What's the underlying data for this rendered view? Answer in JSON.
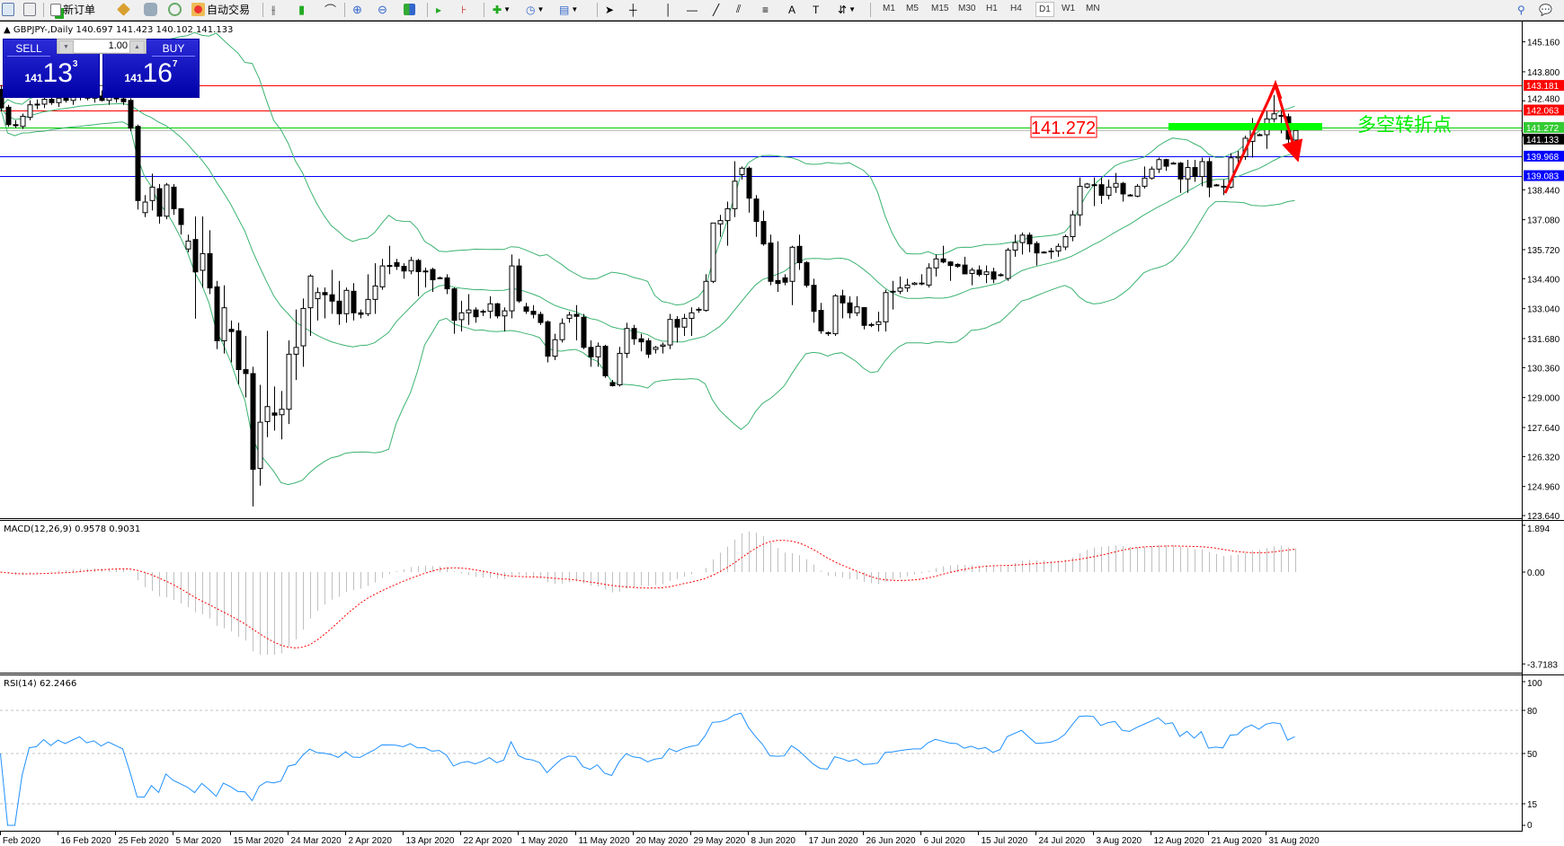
{
  "toolbar": {
    "new_order_label": "新订单",
    "auto_trading_label": "自动交易",
    "icons": [
      "market-watch-icon",
      "navigator-icon",
      "new-order-icon",
      "history-center-icon",
      "terminal-icon",
      "signals-icon",
      "auto-trading-icon",
      "bar-chart-icon",
      "candlestick-icon",
      "line-chart-icon",
      "zoom-in-icon",
      "zoom-out-icon",
      "tile-windows-icon",
      "auto-scroll-icon",
      "chart-shift-icon",
      "indicators-icon",
      "periods-icon",
      "templates-icon",
      "cursor-icon",
      "crosshair-icon",
      "vertical-line-icon",
      "horizontal-line-icon",
      "trendline-icon",
      "equidistant-channel-icon",
      "fibonacci-icon",
      "text-icon",
      "text-label-icon",
      "arrows-icon",
      "search-icon",
      "chat-icon"
    ],
    "timeframes": [
      "M1",
      "M5",
      "M15",
      "M30",
      "H1",
      "H4",
      "D1",
      "W1",
      "MN"
    ],
    "active_timeframe": "D1"
  },
  "chart": {
    "symbol_line": "GBPJPY-,Daily  140.697 141.423 140.102 141.133",
    "annotation_price": "141.272",
    "annotation_text": "多空转折点",
    "colors": {
      "bull": "#ffffff",
      "bear": "#000000",
      "bands": "#3cb371",
      "support": "#0000ff",
      "resistance": "#ff0000",
      "pivot": "#00e000",
      "arrow": "#ff0000",
      "current": "#c0c0c0"
    }
  },
  "trade_panel": {
    "sell_label": "SELL",
    "buy_label": "BUY",
    "lot": "1.00",
    "sell_price": {
      "prefix": "141",
      "big": "13",
      "sup": "3"
    },
    "buy_price": {
      "prefix": "141",
      "big": "16",
      "sup": "7"
    }
  },
  "chart_data": {
    "type": "candlestick",
    "symbol": "GBPJPY-",
    "timeframe": "Daily",
    "ohlc_fields": [
      "open",
      "high",
      "low",
      "close"
    ],
    "candles": [
      [
        143.0,
        143.2,
        142.0,
        142.16
      ],
      [
        142.19,
        142.3,
        141.3,
        141.4
      ],
      [
        141.4,
        141.6,
        141.25,
        141.35
      ],
      [
        141.32,
        141.9,
        141.2,
        141.78
      ],
      [
        141.73,
        142.5,
        141.6,
        142.3
      ],
      [
        142.3,
        142.55,
        142.1,
        142.33
      ],
      [
        142.33,
        142.75,
        142.15,
        142.55
      ],
      [
        142.55,
        142.8,
        142.3,
        142.4
      ],
      [
        142.4,
        142.7,
        142.2,
        142.6
      ],
      [
        142.6,
        142.9,
        142.4,
        142.5
      ],
      [
        142.5,
        142.75,
        142.3,
        142.65
      ],
      [
        142.65,
        143.0,
        142.5,
        142.8
      ],
      [
        142.8,
        143.1,
        142.5,
        142.6
      ],
      [
        142.6,
        142.9,
        142.4,
        142.7
      ],
      [
        142.7,
        142.95,
        142.45,
        142.5
      ],
      [
        142.5,
        142.8,
        142.3,
        142.7
      ],
      [
        142.7,
        142.9,
        142.4,
        142.57
      ],
      [
        142.57,
        142.75,
        142.3,
        142.44
      ],
      [
        142.5,
        142.6,
        141.1,
        141.24
      ],
      [
        141.32,
        141.4,
        137.54,
        137.95
      ],
      [
        137.4,
        138.2,
        137.2,
        137.88
      ],
      [
        137.95,
        139.17,
        137.5,
        138.56
      ],
      [
        138.49,
        138.7,
        136.9,
        137.24
      ],
      [
        137.24,
        138.75,
        137.1,
        138.66
      ],
      [
        138.56,
        138.7,
        137.3,
        137.58
      ],
      [
        137.58,
        137.6,
        136.4,
        136.86
      ],
      [
        135.75,
        136.4,
        135.6,
        136.11
      ],
      [
        136.18,
        137.23,
        132.58,
        134.71
      ],
      [
        134.78,
        137.23,
        134.0,
        135.54
      ],
      [
        135.54,
        136.6,
        133.7,
        133.98
      ],
      [
        134.03,
        134.3,
        131.2,
        131.58
      ],
      [
        131.58,
        134.1,
        131.0,
        133.08
      ],
      [
        132.1,
        132.5,
        130.6,
        132.0
      ],
      [
        132.03,
        132.4,
        129.6,
        130.27
      ],
      [
        130.27,
        131.8,
        129.0,
        130.09
      ],
      [
        130.09,
        130.4,
        124.05,
        125.74
      ],
      [
        125.78,
        129.58,
        125.0,
        127.88
      ],
      [
        127.91,
        132.03,
        127.2,
        128.59
      ],
      [
        128.3,
        129.5,
        127.5,
        128.2
      ],
      [
        128.22,
        129.3,
        127.1,
        128.47
      ],
      [
        128.47,
        131.6,
        127.8,
        130.97
      ],
      [
        130.97,
        133.0,
        129.8,
        131.28
      ],
      [
        131.35,
        133.5,
        130.4,
        133.05
      ],
      [
        133.08,
        134.6,
        131.8,
        134.52
      ],
      [
        133.49,
        134.0,
        132.5,
        133.77
      ],
      [
        133.77,
        134.0,
        132.6,
        133.67
      ],
      [
        133.67,
        134.8,
        132.8,
        133.38
      ],
      [
        133.38,
        134.3,
        132.3,
        132.81
      ],
      [
        132.81,
        134.0,
        132.4,
        133.87
      ],
      [
        133.83,
        134.2,
        132.5,
        132.85
      ],
      [
        132.85,
        133.0,
        132.6,
        132.78
      ],
      [
        132.81,
        134.6,
        132.7,
        133.46
      ],
      [
        133.46,
        135.1,
        132.8,
        134.07
      ],
      [
        134.03,
        135.3,
        133.9,
        134.98
      ],
      [
        135.0,
        135.9,
        134.6,
        134.99
      ],
      [
        135.13,
        135.3,
        134.8,
        134.96
      ],
      [
        134.96,
        135.1,
        134.4,
        134.75
      ],
      [
        134.75,
        135.4,
        134.6,
        135.23
      ],
      [
        135.23,
        135.3,
        133.6,
        134.72
      ],
      [
        134.72,
        134.9,
        134.0,
        134.75
      ],
      [
        134.82,
        134.9,
        133.8,
        134.35
      ],
      [
        134.44,
        134.5,
        134.4,
        134.44
      ],
      [
        134.44,
        134.6,
        133.7,
        133.94
      ],
      [
        133.94,
        134.0,
        131.9,
        132.51
      ],
      [
        132.54,
        133.4,
        132.0,
        132.85
      ],
      [
        132.85,
        133.7,
        132.3,
        132.98
      ],
      [
        132.98,
        133.1,
        132.4,
        132.67
      ],
      [
        132.88,
        133.0,
        132.7,
        132.92
      ],
      [
        132.92,
        133.6,
        132.6,
        133.26
      ],
      [
        133.26,
        133.3,
        132.6,
        132.71
      ],
      [
        132.71,
        133.1,
        132.0,
        132.94
      ],
      [
        132.94,
        135.5,
        132.6,
        134.98
      ],
      [
        134.98,
        135.3,
        133.3,
        133.39
      ],
      [
        133.12,
        133.3,
        132.8,
        132.92
      ],
      [
        132.92,
        133.2,
        132.6,
        132.78
      ],
      [
        132.78,
        132.9,
        132.3,
        132.41
      ],
      [
        132.44,
        132.5,
        130.6,
        130.88
      ],
      [
        130.88,
        131.9,
        130.7,
        131.63
      ],
      [
        131.63,
        132.6,
        131.5,
        132.37
      ],
      [
        132.6,
        132.9,
        132.4,
        132.75
      ],
      [
        132.78,
        133.2,
        131.6,
        132.69
      ],
      [
        132.65,
        132.8,
        131.2,
        131.28
      ],
      [
        131.28,
        131.6,
        130.4,
        130.85
      ],
      [
        130.85,
        131.5,
        130.4,
        131.33
      ],
      [
        131.33,
        131.4,
        129.9,
        129.99
      ],
      [
        129.68,
        129.8,
        129.5,
        129.54
      ],
      [
        129.58,
        131.3,
        129.5,
        131.01
      ],
      [
        131.01,
        132.4,
        130.8,
        132.14
      ],
      [
        132.14,
        132.3,
        131.4,
        131.67
      ],
      [
        131.67,
        131.9,
        131.1,
        131.53
      ],
      [
        131.58,
        131.7,
        130.8,
        130.97
      ],
      [
        131.19,
        131.35,
        131.0,
        131.28
      ],
      [
        131.33,
        131.5,
        131.0,
        131.39
      ],
      [
        131.39,
        132.8,
        131.2,
        132.55
      ],
      [
        132.55,
        132.7,
        131.5,
        132.2
      ],
      [
        132.2,
        132.8,
        131.8,
        132.6
      ],
      [
        132.6,
        133.1,
        131.8,
        132.85
      ],
      [
        132.98,
        133.1,
        132.85,
        133.01
      ],
      [
        132.96,
        134.6,
        132.9,
        134.28
      ],
      [
        134.28,
        136.93,
        134.2,
        136.93
      ],
      [
        136.89,
        137.3,
        136.3,
        137.04
      ],
      [
        137.04,
        137.9,
        135.9,
        137.58
      ],
      [
        137.58,
        139.74,
        137.2,
        138.83
      ],
      [
        139.13,
        139.5,
        138.9,
        139.42
      ],
      [
        139.42,
        139.5,
        137.4,
        138.06
      ],
      [
        138.02,
        138.2,
        136.3,
        137.0
      ],
      [
        137.0,
        137.5,
        135.9,
        135.98
      ],
      [
        136.02,
        136.4,
        134.1,
        134.28
      ],
      [
        134.32,
        136.1,
        133.8,
        134.18
      ],
      [
        134.44,
        134.6,
        134.1,
        134.24
      ],
      [
        134.28,
        135.9,
        133.2,
        135.83
      ],
      [
        135.87,
        136.4,
        134.8,
        135.13
      ],
      [
        135.13,
        135.2,
        134.0,
        134.1
      ],
      [
        134.1,
        134.4,
        132.4,
        132.92
      ],
      [
        132.96,
        133.3,
        131.9,
        132.03
      ],
      [
        131.95,
        132.0,
        131.8,
        131.9
      ],
      [
        131.9,
        133.7,
        131.8,
        133.62
      ],
      [
        133.62,
        133.9,
        132.6,
        133.3
      ],
      [
        133.3,
        133.6,
        132.6,
        132.85
      ],
      [
        132.85,
        133.6,
        132.7,
        133.12
      ],
      [
        133.09,
        133.1,
        132.1,
        132.28
      ],
      [
        132.28,
        132.4,
        132.2,
        132.32
      ],
      [
        132.32,
        132.9,
        132.0,
        132.44
      ],
      [
        132.44,
        133.9,
        132.0,
        133.77
      ],
      [
        133.8,
        134.3,
        133.0,
        133.83
      ],
      [
        133.83,
        134.5,
        133.7,
        133.98
      ],
      [
        133.98,
        134.4,
        133.8,
        134.11
      ],
      [
        134.14,
        134.25,
        134.1,
        134.2
      ],
      [
        134.2,
        134.6,
        134.1,
        134.2
      ],
      [
        134.11,
        135.1,
        134.0,
        134.89
      ],
      [
        134.89,
        135.5,
        134.5,
        135.3
      ],
      [
        135.3,
        135.9,
        135.1,
        135.16
      ],
      [
        135.16,
        135.2,
        134.3,
        135.0
      ],
      [
        135.05,
        135.1,
        134.9,
        134.96
      ],
      [
        135.02,
        135.4,
        134.6,
        134.62
      ],
      [
        134.64,
        134.9,
        134.1,
        134.79
      ],
      [
        134.79,
        135.0,
        134.5,
        134.59
      ],
      [
        134.59,
        135.0,
        134.2,
        134.71
      ],
      [
        134.71,
        134.9,
        134.2,
        134.38
      ],
      [
        134.55,
        134.65,
        134.5,
        134.58
      ],
      [
        134.41,
        135.8,
        134.3,
        135.7
      ],
      [
        135.7,
        136.4,
        135.4,
        136.04
      ],
      [
        136.04,
        136.5,
        135.5,
        136.38
      ],
      [
        136.38,
        136.5,
        135.6,
        135.98
      ],
      [
        136.0,
        136.1,
        135.0,
        135.57
      ],
      [
        135.6,
        135.65,
        135.55,
        135.61
      ],
      [
        135.66,
        135.8,
        135.3,
        135.66
      ],
      [
        135.66,
        136.0,
        135.4,
        135.87
      ],
      [
        135.84,
        136.4,
        135.7,
        136.31
      ],
      [
        136.31,
        137.5,
        136.1,
        137.3
      ],
      [
        137.3,
        139.0,
        136.8,
        138.6
      ],
      [
        138.56,
        138.75,
        138.5,
        138.7
      ],
      [
        138.67,
        139.0,
        137.7,
        138.67
      ],
      [
        138.67,
        139.0,
        137.8,
        138.19
      ],
      [
        138.19,
        138.9,
        138.0,
        138.56
      ],
      [
        138.56,
        139.2,
        138.3,
        138.73
      ],
      [
        138.73,
        138.8,
        137.9,
        138.25
      ],
      [
        138.2,
        138.25,
        138.15,
        138.19
      ],
      [
        138.15,
        138.7,
        138.1,
        138.6
      ],
      [
        138.6,
        139.5,
        138.5,
        138.97
      ],
      [
        138.97,
        139.5,
        138.9,
        139.38
      ],
      [
        139.38,
        139.9,
        139.2,
        139.81
      ],
      [
        139.81,
        139.85,
        139.3,
        139.51
      ],
      [
        139.63,
        139.7,
        139.6,
        139.65
      ],
      [
        139.65,
        139.7,
        138.3,
        138.93
      ],
      [
        138.93,
        139.8,
        138.3,
        139.45
      ],
      [
        139.45,
        139.8,
        138.8,
        139.04
      ],
      [
        139.04,
        139.9,
        138.6,
        139.72
      ],
      [
        139.72,
        139.9,
        138.1,
        138.56
      ],
      [
        138.66,
        138.7,
        138.6,
        138.66
      ],
      [
        138.6,
        138.9,
        138.2,
        138.6
      ],
      [
        138.56,
        140.1,
        138.5,
        139.89
      ],
      [
        139.89,
        140.2,
        139.6,
        139.95
      ],
      [
        139.95,
        140.9,
        139.8,
        140.78
      ],
      [
        140.64,
        141.7,
        139.9,
        141.21
      ],
      [
        140.94,
        141.0,
        140.9,
        140.94
      ],
      [
        140.94,
        142.0,
        140.3,
        141.66
      ],
      [
        141.66,
        142.74,
        141.5,
        141.89
      ],
      [
        141.82,
        142.0,
        141.0,
        141.82
      ],
      [
        141.76,
        141.9,
        140.5,
        140.74
      ],
      [
        140.697,
        141.423,
        140.102,
        141.133
      ]
    ],
    "price_axis": {
      "ylim": [
        123.64,
        145.16
      ],
      "ticks": [
        "145.160",
        "143.800",
        "142.480",
        "138.440",
        "137.080",
        "135.720",
        "134.400",
        "133.040",
        "131.680",
        "130.360",
        "129.000",
        "127.640",
        "126.320",
        "124.960",
        "123.640"
      ]
    },
    "x_tick_labels": [
      "6 Feb 2020",
      "16 Feb 2020",
      "25 Feb 2020",
      "5 Mar 2020",
      "15 Mar 2020",
      "24 Mar 2020",
      "2 Apr 2020",
      "13 Apr 2020",
      "22 Apr 2020",
      "1 May 2020",
      "11 May 2020",
      "20 May 2020",
      "29 May 2020",
      "8 Jun 2020",
      "17 Jun 2020",
      "26 Jun 2020",
      "6 Jul 2020",
      "15 Jul 2020",
      "24 Jul 2020",
      "3 Aug 2020",
      "12 Aug 2020",
      "21 Aug 2020",
      "31 Aug 2020"
    ],
    "horizontal_lines": [
      {
        "price": "143.181",
        "color": "#ff0000"
      },
      {
        "price": "142.063",
        "color": "#ff0000"
      },
      {
        "price": "141.272",
        "color": "#00cc00"
      },
      {
        "price": "141.133",
        "color": "#000000"
      },
      {
        "price": "139.968",
        "color": "#0000ff"
      },
      {
        "price": "139.083",
        "color": "#0000ff"
      }
    ],
    "indicators": {
      "bollinger": {
        "color": "#3cb371"
      },
      "macd": {
        "label": "MACD(12,26,9) 0.9578 0.9031",
        "ticks": [
          "1.894",
          "0.00",
          "-3.7183"
        ],
        "ylim": [
          -3.7183,
          1.894
        ],
        "hist_color": "#c0c0c0",
        "signal_color": "#ff0000"
      },
      "rsi": {
        "label": "RSI(14) 62.2466",
        "ticks": [
          "100",
          "80",
          "50",
          "15",
          "0"
        ],
        "levels": [
          80,
          50,
          15
        ],
        "ylim": [
          0,
          100
        ],
        "color": "#1e90ff"
      }
    }
  }
}
